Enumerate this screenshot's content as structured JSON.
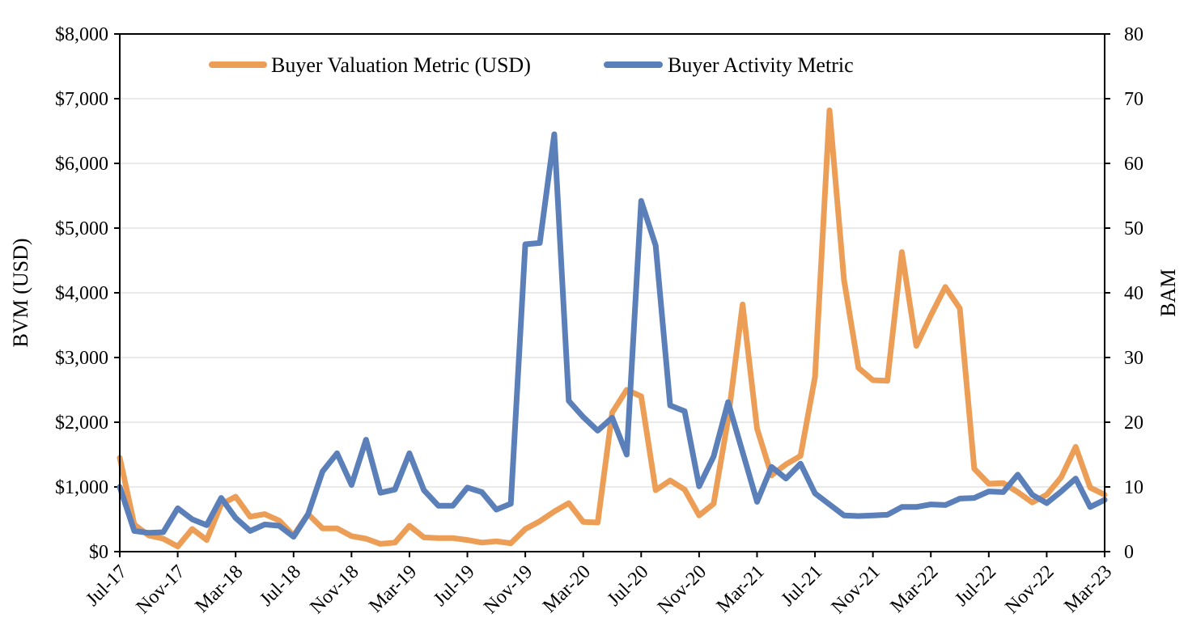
{
  "chart_data": {
    "type": "line",
    "x": [
      "Jul-17",
      "Aug-17",
      "Sep-17",
      "Oct-17",
      "Nov-17",
      "Dec-17",
      "Jan-18",
      "Feb-18",
      "Mar-18",
      "Apr-18",
      "May-18",
      "Jun-18",
      "Jul-18",
      "Aug-18",
      "Sep-18",
      "Oct-18",
      "Nov-18",
      "Dec-18",
      "Jan-19",
      "Feb-19",
      "Mar-19",
      "Apr-19",
      "May-19",
      "Jun-19",
      "Jul-19",
      "Aug-19",
      "Sep-19",
      "Oct-19",
      "Nov-19",
      "Dec-19",
      "Jan-20",
      "Feb-20",
      "Mar-20",
      "Apr-20",
      "May-20",
      "Jun-20",
      "Jul-20",
      "Aug-20",
      "Sep-20",
      "Oct-20",
      "Nov-20",
      "Dec-20",
      "Jan-21",
      "Feb-21",
      "Mar-21",
      "Apr-21",
      "May-21",
      "Jun-21",
      "Jul-21",
      "Aug-21",
      "Sep-21",
      "Oct-21",
      "Nov-21",
      "Dec-21",
      "Jan-22",
      "Feb-22",
      "Mar-22",
      "Apr-22",
      "May-22",
      "Jun-22",
      "Jul-22",
      "Aug-22",
      "Sep-22",
      "Oct-22",
      "Nov-22",
      "Dec-22",
      "Jan-23",
      "Feb-23",
      "Mar-23"
    ],
    "x_tick_labels": [
      "Jul-17",
      "Nov-17",
      "Mar-18",
      "Jul-18",
      "Nov-18",
      "Mar-19",
      "Jul-19",
      "Nov-19",
      "Mar-20",
      "Jul-20",
      "Nov-20",
      "Mar-21",
      "Jul-21",
      "Nov-21",
      "Mar-22",
      "Jul-22",
      "Nov-22",
      "Mar-23"
    ],
    "series": [
      {
        "name": "Buyer Valuation Metric (USD)",
        "axis": "left",
        "color": "#ED9E56",
        "values": [
          1450,
          420,
          250,
          200,
          80,
          350,
          180,
          730,
          850,
          540,
          580,
          480,
          250,
          580,
          360,
          360,
          240,
          200,
          120,
          140,
          400,
          220,
          210,
          210,
          180,
          140,
          160,
          130,
          350,
          470,
          620,
          750,
          460,
          450,
          2150,
          2500,
          2400,
          950,
          1100,
          960,
          560,
          740,
          2050,
          3820,
          1900,
          1180,
          1350,
          1480,
          2700,
          6820,
          4200,
          2840,
          2650,
          2640,
          4630,
          3180,
          3650,
          4090,
          3760,
          1280,
          1050,
          1060,
          920,
          760,
          880,
          1150,
          1620,
          990,
          880
        ]
      },
      {
        "name": "Buyer Activity Metric",
        "axis": "right",
        "color": "#5B7FB9",
        "values": [
          10,
          3.2,
          2.9,
          3,
          6.7,
          5,
          4.1,
          8.3,
          5.2,
          3.2,
          4.2,
          4,
          2.3,
          5.8,
          12.4,
          15.2,
          10.3,
          17.3,
          9.1,
          9.6,
          15.2,
          9.5,
          7.1,
          7.1,
          9.9,
          9.2,
          6.5,
          7.4,
          47.5,
          47.7,
          64.5,
          23.3,
          20.8,
          18.7,
          20.7,
          15,
          54.2,
          47.3,
          22.6,
          21.7,
          10.1,
          14.7,
          23.1,
          15.4,
          7.7,
          13.1,
          11.3,
          13.6,
          9,
          7.3,
          5.6,
          5.5,
          5.6,
          5.7,
          6.9,
          6.9,
          7.3,
          7.2,
          8.2,
          8.3,
          9.3,
          9.2,
          11.9,
          8.8,
          7.5,
          9.3,
          11.3,
          6.9,
          8
        ]
      }
    ],
    "y_left": {
      "label": "BVM (USD)",
      "range": [
        0,
        8000
      ],
      "ticks": [
        0,
        1000,
        2000,
        3000,
        4000,
        5000,
        6000,
        7000,
        8000
      ],
      "tick_labels": [
        "$0",
        "$1,000",
        "$2,000",
        "$3,000",
        "$4,000",
        "$5,000",
        "$6,000",
        "$7,000",
        "$8,000"
      ]
    },
    "y_right": {
      "label": "BAM",
      "range": [
        0,
        80
      ],
      "ticks": [
        0,
        10,
        20,
        30,
        40,
        50,
        60,
        70,
        80
      ],
      "tick_labels": [
        "0",
        "10",
        "20",
        "30",
        "40",
        "50",
        "60",
        "70",
        "80"
      ]
    },
    "grid": true,
    "legend_position": "top-center"
  }
}
